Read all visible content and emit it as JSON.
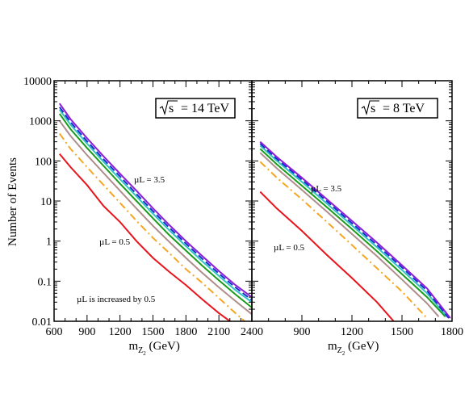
{
  "chart_data": [
    {
      "type": "line",
      "y_scale": "log",
      "ylim": [
        0.01,
        10000
      ],
      "xlim": [
        600,
        2400
      ],
      "xlabel": "m",
      "xlabel_sub": "Z",
      "xlabel_subsub": "2",
      "xlabel_unit": " (GeV)",
      "ylabel": "Number of Events",
      "x_tick_labels": [
        "600",
        "900",
        "1200",
        "1500",
        "1800",
        "2100",
        "2400"
      ],
      "y_tick_labels": [
        "0.01",
        "0.1",
        "1",
        "10",
        "100",
        "1000",
        "10000"
      ],
      "energy_label": "= 14 TeV",
      "energy_sqrt": "s",
      "annotations": [
        "µL = 3.5",
        "µL = 0.5",
        "µL is increased by 0.5"
      ],
      "series": [
        {
          "color": "#e8141c",
          "dash": "solid",
          "x": [
            650,
            750,
            900,
            1050,
            1200,
            1350,
            1500,
            1650,
            1800,
            1950,
            2100,
            2250
          ],
          "y": [
            150,
            70,
            25,
            7.5,
            3.0,
            1.0,
            0.38,
            0.17,
            0.08,
            0.035,
            0.016,
            0.008
          ]
        },
        {
          "color": "#f5a623",
          "dash": "dashdot",
          "x": [
            650,
            750,
            900,
            1050,
            1200,
            1350,
            1500,
            1650,
            1800,
            1950,
            2100,
            2250,
            2400
          ],
          "y": [
            480,
            200,
            70,
            25,
            9,
            3.2,
            1.2,
            0.5,
            0.2,
            0.09,
            0.038,
            0.016,
            0.007
          ]
        },
        {
          "color": "#b08d8d",
          "dash": "solid",
          "x": [
            650,
            750,
            900,
            1050,
            1200,
            1350,
            1500,
            1650,
            1800,
            1950,
            2100,
            2250,
            2400
          ],
          "y": [
            1000,
            420,
            140,
            50,
            18,
            6.5,
            2.4,
            0.95,
            0.38,
            0.16,
            0.07,
            0.032,
            0.015
          ]
        },
        {
          "color": "#1a9b1a",
          "dash": "solid",
          "x": [
            650,
            750,
            900,
            1050,
            1200,
            1350,
            1500,
            1650,
            1800,
            1950,
            2100,
            2250,
            2400
          ],
          "y": [
            1500,
            620,
            210,
            75,
            27,
            10,
            3.7,
            1.4,
            0.58,
            0.24,
            0.105,
            0.047,
            0.022
          ]
        },
        {
          "color": "#2ec4c4",
          "dash": "solid",
          "x": [
            650,
            750,
            900,
            1050,
            1200,
            1350,
            1500,
            1650,
            1800,
            1950,
            2100,
            2250,
            2400
          ],
          "y": [
            1900,
            800,
            270,
            95,
            35,
            13,
            4.8,
            1.85,
            0.75,
            0.31,
            0.135,
            0.06,
            0.03
          ]
        },
        {
          "color": "#1f2bd1",
          "dash": "dashed",
          "x": [
            650,
            750,
            900,
            1050,
            1200,
            1350,
            1500,
            1650,
            1800,
            1950,
            2100,
            2250,
            2400
          ],
          "y": [
            2200,
            930,
            310,
            110,
            41,
            15,
            5.6,
            2.15,
            0.87,
            0.36,
            0.155,
            0.07,
            0.034
          ]
        },
        {
          "color": "#8b1fd6",
          "dash": "solid",
          "x": [
            650,
            750,
            900,
            1050,
            1200,
            1350,
            1500,
            1650,
            1800,
            1950,
            2100,
            2250,
            2400
          ],
          "y": [
            2700,
            1100,
            370,
            130,
            48,
            18,
            6.6,
            2.5,
            1.0,
            0.42,
            0.18,
            0.08,
            0.04
          ]
        }
      ]
    },
    {
      "type": "line",
      "y_scale": "log",
      "ylim": [
        0.01,
        10000
      ],
      "xlim": [
        600,
        1800
      ],
      "xlabel": "m",
      "xlabel_sub": "Z",
      "xlabel_subsub": "2",
      "xlabel_unit": " (GeV)",
      "x_tick_labels": [
        "900",
        "1200",
        "1500",
        "1800"
      ],
      "energy_label": "= 8 TeV",
      "energy_sqrt": "s",
      "annotations": [
        "µL = 3.5",
        "µL = 0.5"
      ],
      "series": [
        {
          "color": "#e8141c",
          "dash": "solid",
          "x": [
            650,
            750,
            900,
            1050,
            1200,
            1350,
            1450
          ],
          "y": [
            17,
            6.5,
            1.8,
            0.45,
            0.12,
            0.03,
            0.01
          ]
        },
        {
          "color": "#f5a623",
          "dash": "dashdot",
          "x": [
            650,
            750,
            900,
            1050,
            1200,
            1350,
            1500,
            1650
          ],
          "y": [
            95,
            38,
            11,
            3.0,
            0.8,
            0.21,
            0.055,
            0.012
          ]
        },
        {
          "color": "#b08d8d",
          "dash": "solid",
          "x": [
            650,
            750,
            900,
            1050,
            1200,
            1350,
            1500,
            1650,
            1720
          ],
          "y": [
            160,
            65,
            19,
            5.4,
            1.5,
            0.42,
            0.11,
            0.028,
            0.013
          ]
        },
        {
          "color": "#1a9b1a",
          "dash": "solid",
          "x": [
            650,
            750,
            900,
            1050,
            1200,
            1350,
            1500,
            1650,
            1760
          ],
          "y": [
            200,
            82,
            24,
            7.0,
            2.0,
            0.56,
            0.15,
            0.04,
            0.013
          ]
        },
        {
          "color": "#2ec4c4",
          "dash": "solid",
          "x": [
            650,
            750,
            900,
            1050,
            1200,
            1350,
            1500,
            1650,
            1770
          ],
          "y": [
            240,
            100,
            30,
            8.6,
            2.45,
            0.7,
            0.19,
            0.05,
            0.013
          ]
        },
        {
          "color": "#1f2bd1",
          "dash": "dashed",
          "x": [
            650,
            750,
            900,
            1050,
            1200,
            1350,
            1500,
            1650,
            1780
          ],
          "y": [
            270,
            112,
            34,
            9.8,
            2.8,
            0.8,
            0.22,
            0.058,
            0.012
          ]
        },
        {
          "color": "#8b1fd6",
          "dash": "solid",
          "x": [
            650,
            750,
            900,
            1050,
            1200,
            1350,
            1500,
            1650,
            1790
          ],
          "y": [
            300,
            125,
            38,
            11,
            3.2,
            0.92,
            0.25,
            0.066,
            0.012
          ]
        }
      ]
    }
  ]
}
